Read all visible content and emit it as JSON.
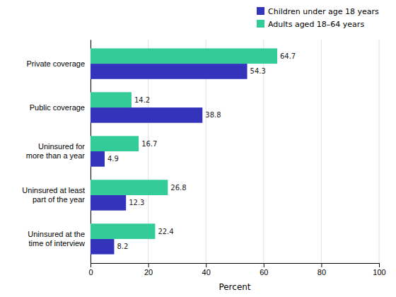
{
  "chart_data": {
    "type": "bar",
    "orientation": "horizontal",
    "categories": [
      "Private coverage",
      "Public coverage",
      "Uninsured for\nmore than a year",
      "Uninsured at least\npart of the year",
      "Uninsured at the\ntime of interview"
    ],
    "series": [
      {
        "name": "Children under age 18 years",
        "color": "#3333bb",
        "values": [
          54.3,
          38.8,
          4.9,
          12.3,
          8.2
        ]
      },
      {
        "name": "Adults aged 18–64 years",
        "color": "#33cc99",
        "values": [
          64.7,
          14.2,
          16.7,
          26.8,
          22.4
        ]
      }
    ],
    "x_label": "Percent",
    "xlim": [
      0,
      100
    ],
    "xticks": [
      0,
      20,
      40,
      60,
      80,
      100
    ],
    "grid": true,
    "legend": "upper right",
    "data_labels": true
  }
}
